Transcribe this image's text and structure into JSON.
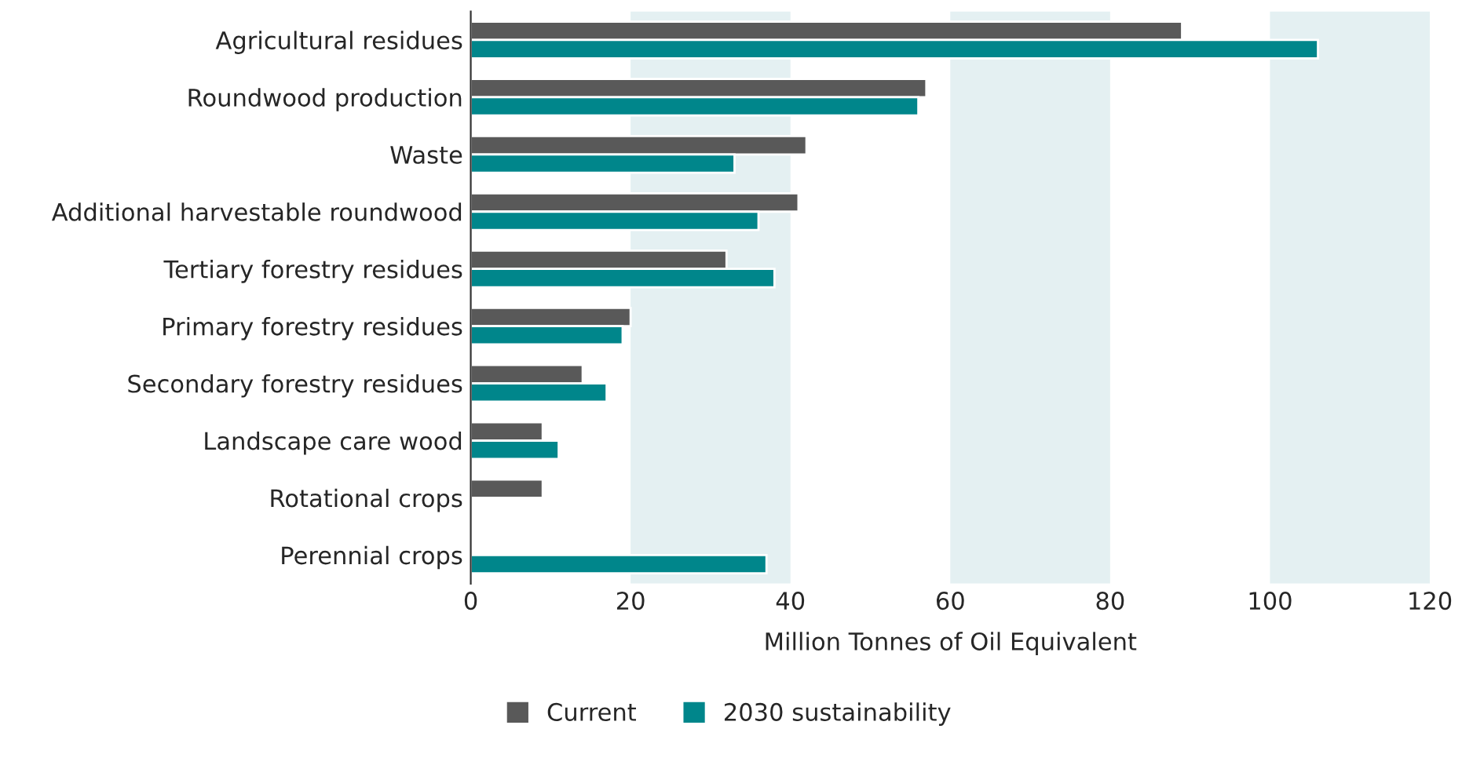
{
  "chart_data": {
    "type": "bar",
    "orientation": "horizontal",
    "xlabel": "Million Tonnes of Oil Equivalent",
    "categories": [
      "Agricultural residues",
      "Roundwood production",
      "Waste",
      "Additional harvestable roundwood",
      "Tertiary forestry residues",
      "Primary forestry residues",
      "Secondary forestry residues",
      "Landscape care wood",
      "Rotational crops",
      "Perennial crops"
    ],
    "series": [
      {
        "name": "Current",
        "color": "#595959",
        "values": [
          89,
          57,
          42,
          41,
          32,
          20,
          14,
          9,
          9,
          null
        ]
      },
      {
        "name": "2030 sustainability",
        "color": "#00868b",
        "values": [
          106,
          56,
          33,
          36,
          38,
          19,
          17,
          11,
          null,
          37
        ]
      }
    ],
    "xlim": [
      0,
      120
    ],
    "xticks": [
      0,
      20,
      40,
      60,
      80,
      100,
      120
    ],
    "bands": [
      {
        "axis": "x",
        "from": 20,
        "to": 40,
        "color": "#e4f0f2"
      },
      {
        "axis": "x",
        "from": 60,
        "to": 80,
        "color": "#e4f0f2"
      },
      {
        "axis": "x",
        "from": 100,
        "to": 120,
        "color": "#e4f0f2"
      }
    ],
    "legend": "bottom",
    "grid": false
  }
}
